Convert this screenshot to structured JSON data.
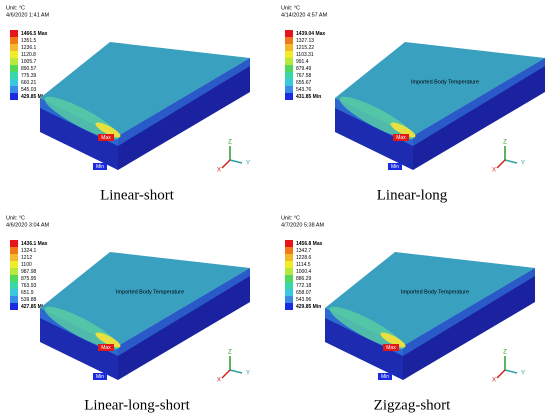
{
  "triad": {
    "x": "X",
    "y": "Y",
    "z": "Z"
  },
  "panels": [
    {
      "unit": "Unit: °C",
      "timestamp": "4/6/2020 1:41 AM",
      "legend": [
        "1466.5 Max",
        "1351.5",
        "1236.1",
        "1120.8",
        "1005.7",
        "890.57",
        "775.39",
        "660.21",
        "545.03",
        "429.85 Min"
      ],
      "max_label": "Max",
      "min_label": "Min",
      "caption": "Linear-short"
    },
    {
      "unit": "Unit: °C",
      "timestamp": "4/14/2020 4:57 AM",
      "legend": [
        "1439.04 Max",
        "1327.13",
        "1215.22",
        "1103.31",
        "991.4",
        "879.49",
        "767.58",
        "655.67",
        "543.76",
        "431.85 Min"
      ],
      "body_label": "Imported Body Temperature",
      "max_label": "Max",
      "min_label": "Min",
      "caption": "Linear-long"
    },
    {
      "unit": "Unit: °C",
      "timestamp": "4/6/2020 3:04 AM",
      "legend": [
        "1436.1 Max",
        "1324.1",
        "1212",
        "1100",
        "987.98",
        "875.95",
        "763.93",
        "651.9",
        "539.88",
        "427.85 Min"
      ],
      "body_label": "Imported Body Temperature",
      "max_label": "Max",
      "min_label": "Min",
      "caption": "Linear-long-short"
    },
    {
      "unit": "Unit: °C",
      "timestamp": "4/7/2020 5:38 AM",
      "legend": [
        "1456.8 Max",
        "1342.7",
        "1228.6",
        "1114.5",
        "1000.4",
        "886.29",
        "772.18",
        "658.07",
        "543.96",
        "429.85 Min"
      ],
      "body_label": "Imported Body Temperature",
      "max_label": "Max",
      "min_label": "Min",
      "caption": "Zigzag-short"
    }
  ]
}
